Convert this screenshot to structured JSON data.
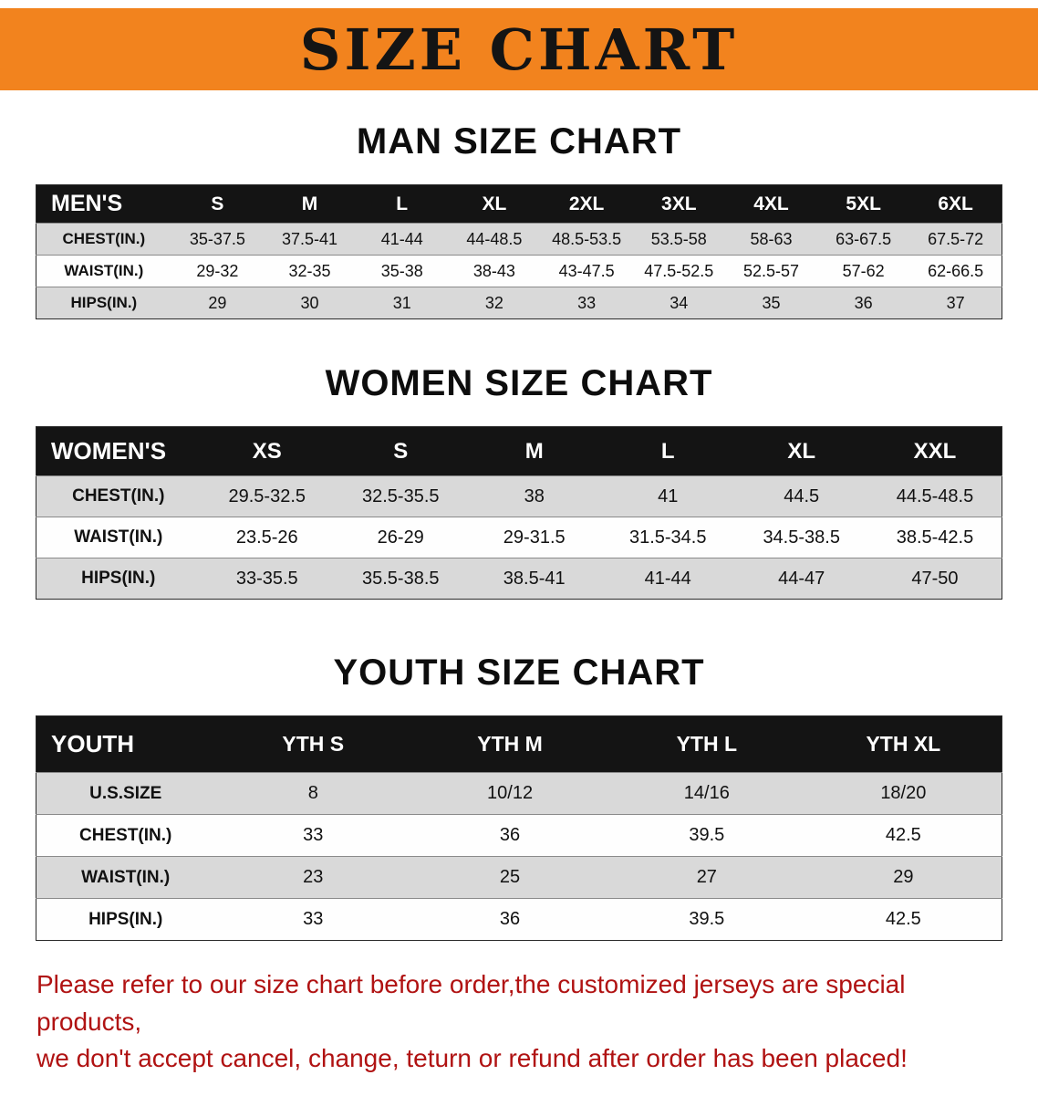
{
  "banner": {
    "title": "SIZE CHART"
  },
  "sections": {
    "men": {
      "heading": "MAN SIZE CHART"
    },
    "women": {
      "heading": "WOMEN SIZE CHART"
    },
    "youth": {
      "heading": "YOUTH SIZE CHART"
    }
  },
  "tables": {
    "men": {
      "header": [
        "MEN'S",
        "S",
        "M",
        "L",
        "XL",
        "2XL",
        "3XL",
        "4XL",
        "5XL",
        "6XL"
      ],
      "rows": [
        [
          "CHEST(IN.)",
          "35-37.5",
          "37.5-41",
          "41-44",
          "44-48.5",
          "48.5-53.5",
          "53.5-58",
          "58-63",
          "63-67.5",
          "67.5-72"
        ],
        [
          "WAIST(IN.)",
          "29-32",
          "32-35",
          "35-38",
          "38-43",
          "43-47.5",
          "47.5-52.5",
          "52.5-57",
          "57-62",
          "62-66.5"
        ],
        [
          "HIPS(IN.)",
          "29",
          "30",
          "31",
          "32",
          "33",
          "34",
          "35",
          "36",
          "37"
        ]
      ]
    },
    "women": {
      "header": [
        "WOMEN'S",
        "XS",
        "S",
        "M",
        "L",
        "XL",
        "XXL"
      ],
      "rows": [
        [
          "CHEST(IN.)",
          "29.5-32.5",
          "32.5-35.5",
          "38",
          "41",
          "44.5",
          "44.5-48.5"
        ],
        [
          "WAIST(IN.)",
          "23.5-26",
          "26-29",
          "29-31.5",
          "31.5-34.5",
          "34.5-38.5",
          "38.5-42.5"
        ],
        [
          "HIPS(IN.)",
          "33-35.5",
          "35.5-38.5",
          "38.5-41",
          "41-44",
          "44-47",
          "47-50"
        ]
      ]
    },
    "youth": {
      "header": [
        "YOUTH",
        "YTH S",
        "YTH M",
        "YTH L",
        "YTH XL"
      ],
      "rows": [
        [
          "U.S.SIZE",
          "8",
          "10/12",
          "14/16",
          "18/20"
        ],
        [
          "CHEST(IN.)",
          "33",
          "36",
          "39.5",
          "42.5"
        ],
        [
          "WAIST(IN.)",
          "23",
          "25",
          "27",
          "29"
        ],
        [
          "HIPS(IN.)",
          "33",
          "36",
          "39.5",
          "42.5"
        ]
      ]
    }
  },
  "disclaimer": {
    "line1": "Please refer to our size chart before order,the customized jerseys are special products,",
    "line2": "we don't accept cancel, change, teturn or refund after order has been placed!"
  },
  "colors": {
    "banner_bg": "#f2831e",
    "banner_text": "#141414",
    "table_header_bg": "#141414",
    "table_header_text": "#ffffff",
    "row_stripe_bg": "#d9d9d9",
    "disclaimer_text": "#b01212"
  }
}
